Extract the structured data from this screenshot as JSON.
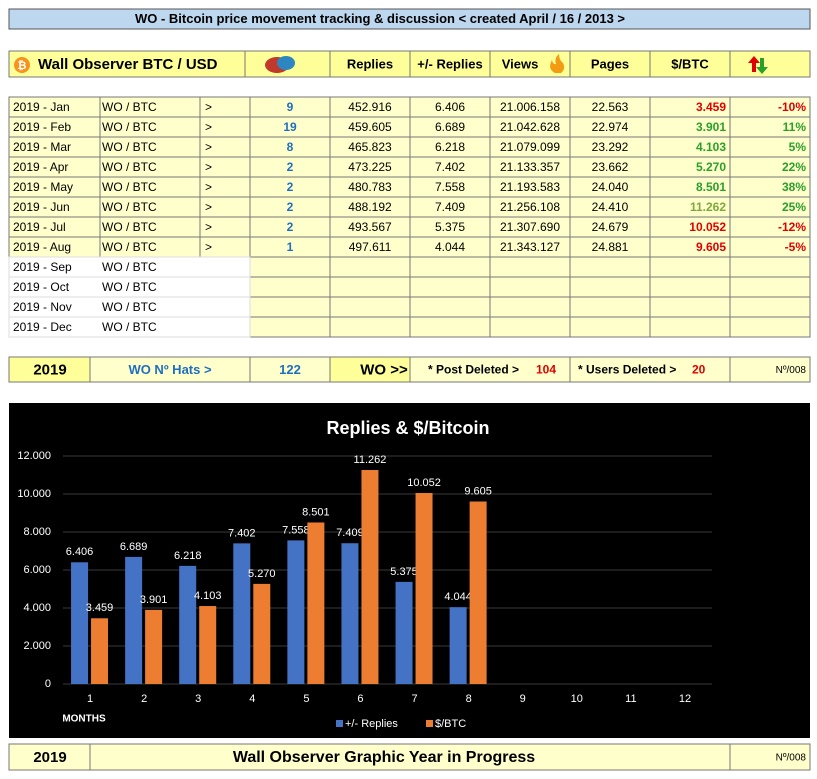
{
  "header": {
    "title": "WO  -  Bitcoin price movement tracking  &  discussion  < created April / 16 / 2013 >"
  },
  "table": {
    "columns": [
      "Wall Observer BTC / USD",
      "Replies",
      "+/- Replies",
      "Views",
      "Pages",
      "$/BTC"
    ],
    "rows": [
      [
        "2019 - Jan",
        "WO / BTC",
        ">",
        "9",
        "452.916",
        "6.406",
        "21.006.158",
        "22.563",
        "3.459",
        "-10%"
      ],
      [
        "2019 - Feb",
        "WO / BTC",
        ">",
        "19",
        "459.605",
        "6.689",
        "21.042.628",
        "22.974",
        "3.901",
        "11%"
      ],
      [
        "2019 - Mar",
        "WO / BTC",
        ">",
        "8",
        "465.823",
        "6.218",
        "21.079.099",
        "23.292",
        "4.103",
        "5%"
      ],
      [
        "2019 - Apr",
        "WO / BTC",
        ">",
        "2",
        "473.225",
        "7.402",
        "21.133.357",
        "23.662",
        "5.270",
        "22%"
      ],
      [
        "2019 - May",
        "WO / BTC",
        ">",
        "2",
        "480.783",
        "7.558",
        "21.193.583",
        "24.040",
        "8.501",
        "38%"
      ],
      [
        "2019 - Jun",
        "WO / BTC",
        ">",
        "2",
        "488.192",
        "7.409",
        "21.256.108",
        "24.410",
        "11.262",
        "25%"
      ],
      [
        "2019 - Jul",
        "WO / BTC",
        ">",
        "2",
        "493.567",
        "5.375",
        "21.307.690",
        "24.679",
        "10.052",
        "-12%"
      ],
      [
        "2019 - Aug",
        "WO / BTC",
        ">",
        "1",
        "497.611",
        "4.044",
        "21.343.127",
        "24.881",
        "9.605",
        "-5%"
      ],
      [
        "2019 - Sep",
        "WO / BTC"
      ],
      [
        "2019 - Oct",
        "WO / BTC"
      ],
      [
        "2019 - Nov",
        "WO / BTC"
      ],
      [
        "2019 - Dec",
        "WO / BTC"
      ]
    ],
    "btc_colors": [
      "#e00000",
      "#2aa02a",
      "#2aa02a",
      "#2aa02a",
      "#2aa02a",
      "#7aab3a",
      "#e00000",
      "#e00000"
    ],
    "pct_colors": [
      "#e00000",
      "#2aa02a",
      "#2aa02a",
      "#2aa02a",
      "#2aa02a",
      "#2aa02a",
      "#e00000",
      "#e00000"
    ]
  },
  "summary": {
    "year": "2019",
    "hats_label": "WO  Nº Hats >",
    "hats": "122",
    "wo": "WO >>",
    "post_deleted_label": "* Post Deleted >",
    "post_deleted": "104",
    "users_deleted_label": "* Users Deleted >",
    "users_deleted": "20",
    "code": "Nº/008"
  },
  "chart_data": {
    "type": "bar",
    "title": "Replies & $/Bitcoin",
    "x_label": "MONTHS",
    "categories": [
      "1",
      "2",
      "3",
      "4",
      "5",
      "6",
      "7",
      "8",
      "9",
      "10",
      "11",
      "12"
    ],
    "series": [
      {
        "name": "+/- Replies",
        "color": "#4472c4",
        "values": [
          6406,
          6689,
          6218,
          7402,
          7558,
          7409,
          5375,
          4044,
          null,
          null,
          null,
          null
        ],
        "value_labels": [
          "6.406",
          "6.689",
          "6.218",
          "7.402",
          "7.558",
          "7.409",
          "5.375",
          "4.044",
          null,
          null,
          null,
          null
        ]
      },
      {
        "name": "$/BTC",
        "color": "#ed7d31",
        "values": [
          3459,
          3901,
          4103,
          5270,
          8501,
          11262,
          10052,
          9605,
          null,
          null,
          null,
          null
        ],
        "value_labels": [
          "3.459",
          "3.901",
          "4.103",
          "5.270",
          "8.501",
          "11.262",
          "10.052",
          "9.605",
          null,
          null,
          null,
          null
        ]
      }
    ],
    "ylim": [
      0,
      12000
    ],
    "yticks": [
      0,
      {
        "value": 2000,
        "label": "2.000"
      },
      {
        "value": 4000,
        "label": "4.000"
      },
      {
        "value": 6000,
        "label": "6.000"
      },
      {
        "value": 8000,
        "label": "8.000"
      },
      {
        "value": 10000,
        "label": "10.000"
      },
      {
        "value": 12000,
        "label": "12.000"
      }
    ],
    "grid": true,
    "legend": "bottom"
  },
  "footer": {
    "year": "2019",
    "title": "Wall Observer Graphic Year in Progress",
    "code": "Nº/008"
  }
}
